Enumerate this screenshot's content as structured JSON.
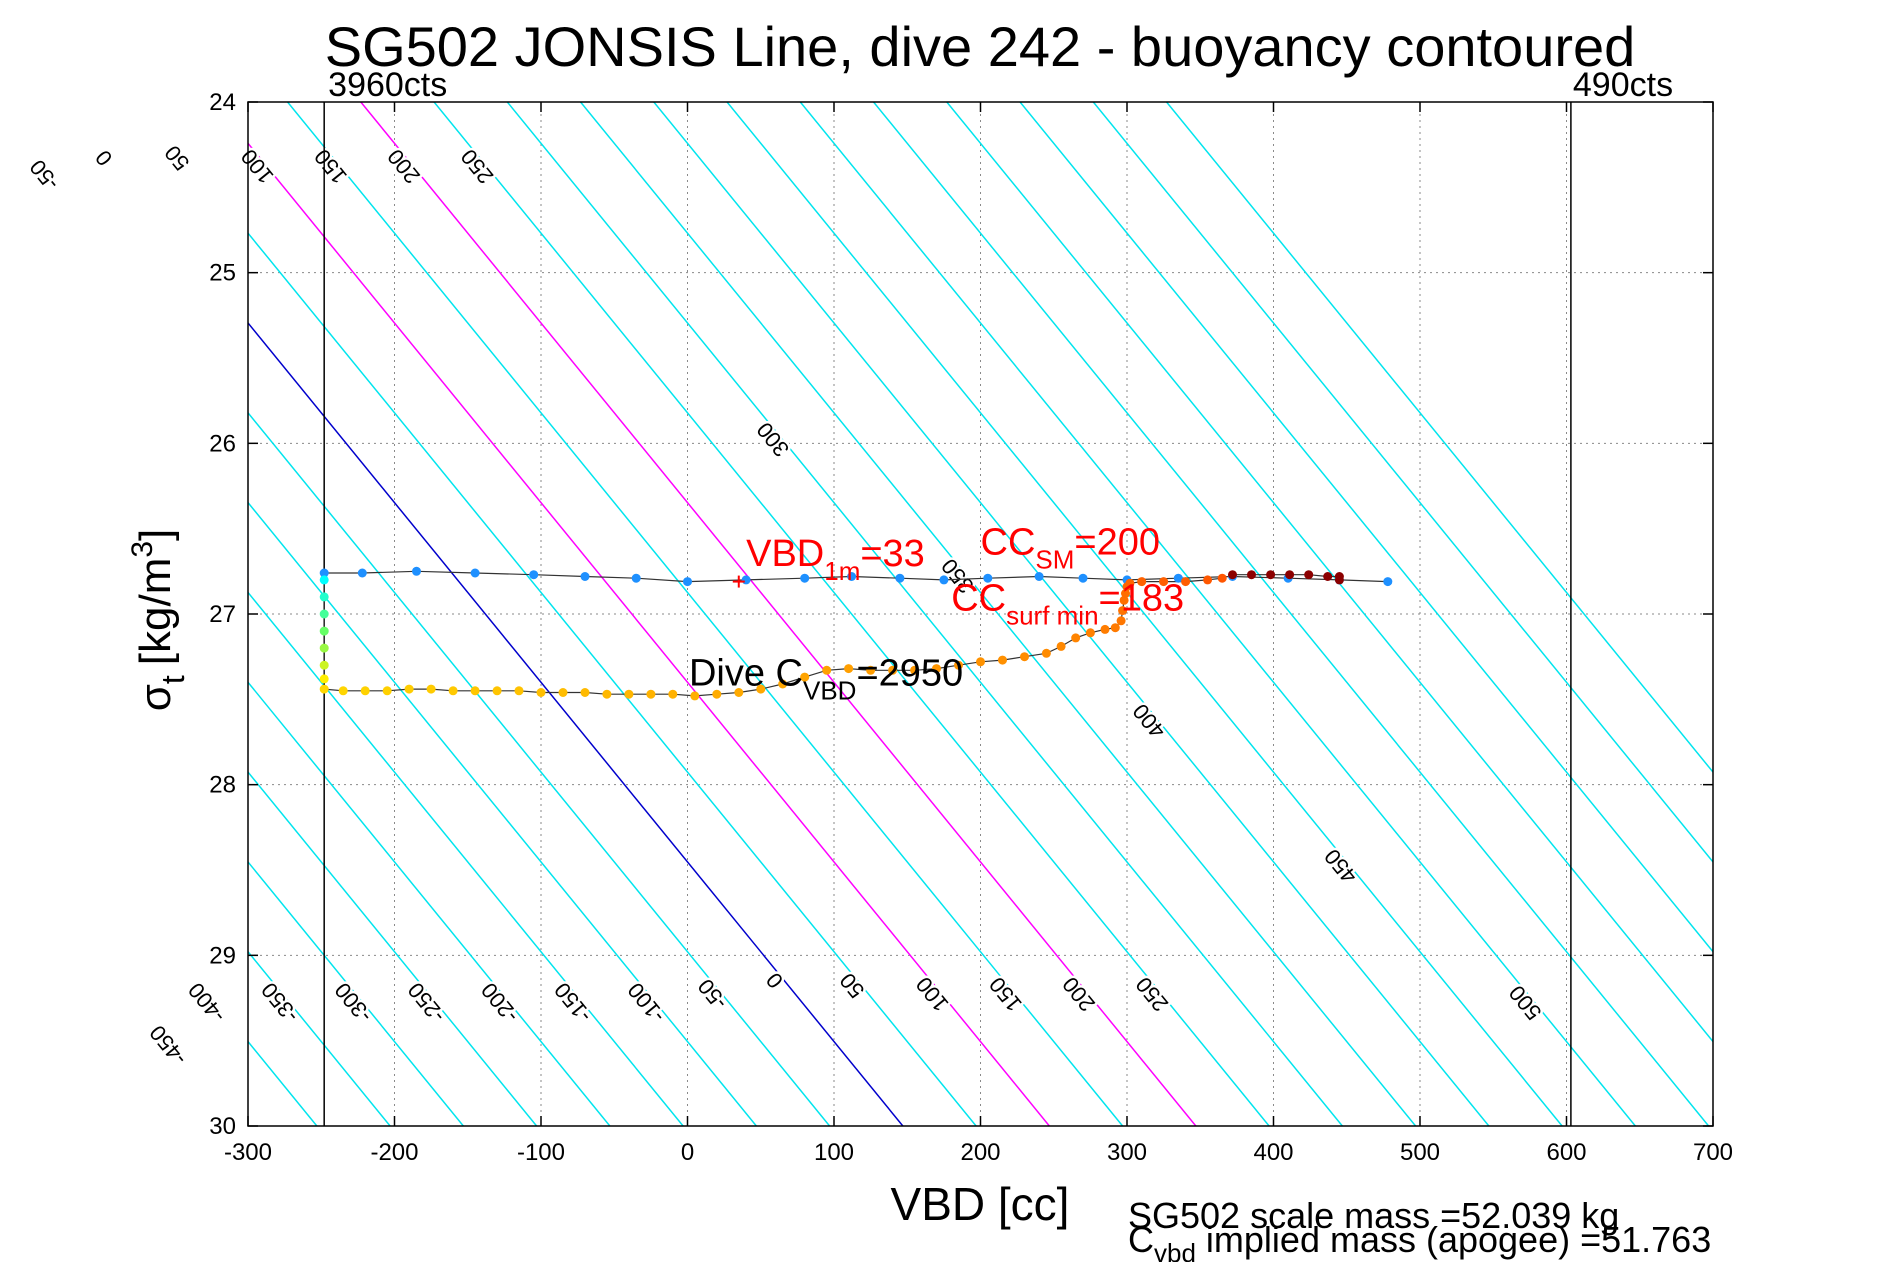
{
  "chart_data": {
    "type": "scatter",
    "title": "SG502 JONSIS Line, dive 242 - buoyancy contoured",
    "xlabel": "VBD [cc]",
    "ylabel": "σt [kg/m3]",
    "ylabel_main": "σ",
    "ylabel_sub": "t",
    "ylabel_unit": "[kg/m",
    "ylabel_unit_sup": "3",
    "ylabel_unit_close": "]",
    "xlim": [
      -300,
      700
    ],
    "ylim": [
      24,
      30
    ],
    "y_reversed": true,
    "grid": "on (dotted)",
    "x_ticks": [
      -300,
      -200,
      -100,
      0,
      100,
      200,
      300,
      400,
      500,
      600,
      700
    ],
    "y_ticks": [
      24,
      25,
      26,
      27,
      28,
      29,
      30
    ],
    "vbd_limits": [
      {
        "x": -248,
        "label": "3960cts"
      },
      {
        "x": 603,
        "label": "490cts"
      }
    ],
    "buoyancy_contours": {
      "slope_cc_per_sigma": 95,
      "reference_x_at_sigma30": 147,
      "levels": [
        -550,
        -500,
        -450,
        -400,
        -350,
        -300,
        -250,
        -200,
        -150,
        -100,
        -50,
        0,
        50,
        100,
        150,
        200,
        250,
        300,
        350,
        400,
        450,
        500,
        550,
        600,
        650,
        700,
        750
      ],
      "color_default": "#00e5ee",
      "color_zero": "#0000cc",
      "color_highlight": "#ff00ff",
      "highlight_levels": [
        100,
        200
      ],
      "top_labels": [
        {
          "level": -450,
          "sigma": 24.6
        },
        {
          "level": -400,
          "sigma": 24.4
        },
        {
          "level": -350,
          "sigma": 24.4
        },
        {
          "level": -300,
          "sigma": 24.4
        },
        {
          "level": -250,
          "sigma": 24.4
        },
        {
          "level": -200,
          "sigma": 24.4
        },
        {
          "level": -150,
          "sigma": 24.4
        },
        {
          "level": -100,
          "sigma": 24.4
        },
        {
          "level": -50,
          "sigma": 24.4
        },
        {
          "level": 0,
          "sigma": 24.3
        },
        {
          "level": 50,
          "sigma": 24.3
        },
        {
          "level": 100,
          "sigma": 24.35
        },
        {
          "level": 150,
          "sigma": 24.35
        },
        {
          "level": 200,
          "sigma": 24.35
        },
        {
          "level": 250,
          "sigma": 24.35
        }
      ],
      "bottom_labels": [
        {
          "level": -500,
          "sigma": 27.8
        },
        {
          "level": -450,
          "sigma": 29.5
        },
        {
          "level": -400,
          "sigma": 29.25
        },
        {
          "level": -350,
          "sigma": 29.25
        },
        {
          "level": -300,
          "sigma": 29.25
        },
        {
          "level": -250,
          "sigma": 29.25
        },
        {
          "level": -200,
          "sigma": 29.25
        },
        {
          "level": -150,
          "sigma": 29.25
        },
        {
          "level": -100,
          "sigma": 29.25
        },
        {
          "level": -50,
          "sigma": 29.2
        },
        {
          "level": 0,
          "sigma": 29.12
        },
        {
          "level": 50,
          "sigma": 29.15
        },
        {
          "level": 100,
          "sigma": 29.2
        },
        {
          "level": 150,
          "sigma": 29.2
        },
        {
          "level": 200,
          "sigma": 29.2
        },
        {
          "level": 250,
          "sigma": 29.2
        }
      ],
      "right_labels": [
        {
          "level": 300,
          "sigma": 25.95
        },
        {
          "level": 350,
          "sigma": 26.75
        },
        {
          "level": 400,
          "sigma": 27.6
        },
        {
          "level": 450,
          "sigma": 28.45
        },
        {
          "level": 500,
          "sigma": 29.25
        }
      ]
    },
    "series": [
      {
        "color": "#1e90ff",
        "points": [
          [
            478,
            26.81
          ],
          [
            445,
            26.8
          ],
          [
            410,
            26.79
          ],
          [
            372,
            26.78
          ],
          [
            335,
            26.79
          ],
          [
            300,
            26.8
          ],
          [
            270,
            26.79
          ],
          [
            240,
            26.78
          ],
          [
            205,
            26.79
          ],
          [
            175,
            26.8
          ],
          [
            145,
            26.79
          ],
          [
            112,
            26.78
          ],
          [
            80,
            26.79
          ],
          [
            40,
            26.8
          ],
          [
            0,
            26.81
          ],
          [
            -35,
            26.79
          ],
          [
            -70,
            26.78
          ],
          [
            -105,
            26.77
          ],
          [
            -145,
            26.76
          ],
          [
            -185,
            26.75
          ],
          [
            -222,
            26.76
          ],
          [
            -248,
            26.76
          ]
        ]
      },
      {
        "color_gradient": [
          "#00ffff",
          "#66ff66",
          "#ffee00"
        ],
        "points": [
          [
            -248,
            26.8
          ],
          [
            -248,
            26.9
          ],
          [
            -248,
            27.0
          ],
          [
            -248,
            27.1
          ],
          [
            -248,
            27.2
          ],
          [
            -248,
            27.3
          ],
          [
            -248,
            27.38
          ]
        ]
      },
      {
        "color_gradient": [
          "#ffd700",
          "#ffb000",
          "#ff8c00",
          "#ff5500"
        ],
        "points": [
          [
            -248,
            27.44
          ],
          [
            -235,
            27.45
          ],
          [
            -220,
            27.45
          ],
          [
            -205,
            27.45
          ],
          [
            -190,
            27.44
          ],
          [
            -175,
            27.44
          ],
          [
            -160,
            27.45
          ],
          [
            -145,
            27.45
          ],
          [
            -130,
            27.45
          ],
          [
            -115,
            27.45
          ],
          [
            -100,
            27.46
          ],
          [
            -85,
            27.46
          ],
          [
            -70,
            27.46
          ],
          [
            -55,
            27.47
          ],
          [
            -40,
            27.47
          ],
          [
            -25,
            27.47
          ],
          [
            -10,
            27.47
          ],
          [
            5,
            27.48
          ],
          [
            20,
            27.47
          ],
          [
            35,
            27.46
          ],
          [
            50,
            27.44
          ],
          [
            65,
            27.41
          ],
          [
            80,
            27.37
          ],
          [
            95,
            27.33
          ],
          [
            110,
            27.32
          ],
          [
            125,
            27.33
          ],
          [
            140,
            27.33
          ],
          [
            155,
            27.33
          ],
          [
            170,
            27.32
          ],
          [
            185,
            27.3
          ],
          [
            200,
            27.28
          ],
          [
            215,
            27.27
          ],
          [
            230,
            27.25
          ],
          [
            245,
            27.23
          ],
          [
            255,
            27.19
          ],
          [
            265,
            27.14
          ],
          [
            275,
            27.11
          ],
          [
            285,
            27.09
          ],
          [
            292,
            27.08
          ],
          [
            296,
            27.04
          ],
          [
            297,
            26.98
          ],
          [
            298,
            26.92
          ],
          [
            299,
            26.88
          ],
          [
            300,
            26.84
          ],
          [
            302,
            26.82
          ],
          [
            310,
            26.81
          ],
          [
            325,
            26.81
          ],
          [
            340,
            26.81
          ],
          [
            355,
            26.8
          ],
          [
            365,
            26.79
          ]
        ]
      },
      {
        "color": "#8b0000",
        "points": [
          [
            372,
            26.77
          ],
          [
            385,
            26.77
          ],
          [
            398,
            26.77
          ],
          [
            411,
            26.77
          ],
          [
            424,
            26.77
          ],
          [
            437,
            26.78
          ],
          [
            445,
            26.78
          ],
          [
            445,
            26.8
          ]
        ]
      }
    ],
    "annotations": [
      {
        "main": "VBD",
        "sub": "1m",
        "value": "=33",
        "x": 40,
        "sigma": 26.72,
        "color": "#ff0000",
        "marker_x": 35,
        "marker_sigma": 26.81
      },
      {
        "main": "CC",
        "sub": "SM",
        "value": "=200",
        "x": 200,
        "sigma": 26.65,
        "color": "#ff0000"
      },
      {
        "main": "CC",
        "sub": "surf min",
        "value": "=183",
        "x": 180,
        "sigma": 26.98,
        "color": "#ff0000"
      },
      {
        "main": "Dive C",
        "sub": "VBD",
        "value": "=2950",
        "x": 1,
        "sigma": 27.42,
        "color": "#000000"
      }
    ],
    "footer": {
      "line1": "SG502 scale mass =52.039 kg",
      "line2_main": "C",
      "line2_sub": "vbd",
      "line2_rest": " implied mass (apogee) =51.763"
    }
  }
}
